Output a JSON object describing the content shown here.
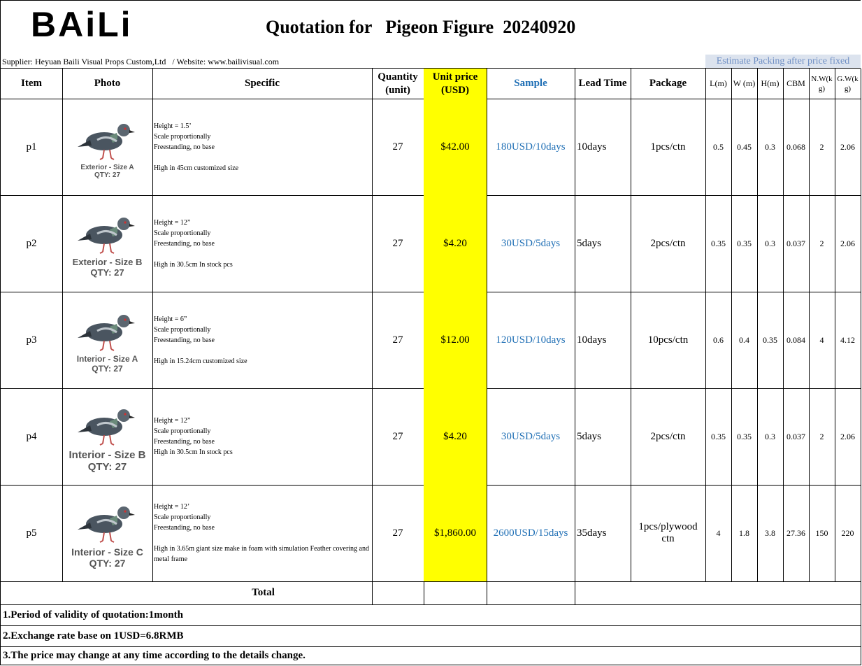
{
  "header": {
    "logo": "BAiLi",
    "title": "Quotation for   Pigeon Figure  20240920",
    "supplier": "Supplier: Heyuan Baili Visual Props Custom,Ltd   / Website: www.bailivisual.com",
    "packing_note": "Estimate Packing after price fixed"
  },
  "table": {
    "columns": [
      "Item",
      "Photo",
      "Specific",
      "Quantity (unit)",
      "Unit price (USD)",
      "Sample",
      "Lead Time",
      "Package",
      "L(m)",
      "W (m)",
      "H(m)",
      "CBM",
      "N.W(kg)",
      "G.W(kg)"
    ],
    "rows": [
      {
        "item": "p1",
        "caption": "Exterior - Size A",
        "caption_qty": "QTY: 27",
        "specific": [
          "Height = 1.5’",
          "Scale proportionally",
          "Freestanding, no base"
        ],
        "note": "High in 45cm  customized size",
        "quantity": 27,
        "unit_price": "$42.00",
        "sample": "180USD/10days",
        "lead_time": "10days",
        "package": "1pcs/ctn",
        "l": 0.5,
        "w": 0.45,
        "h": 0.3,
        "cbm": 0.068,
        "nw": 2,
        "gw": 2.06
      },
      {
        "item": "p2",
        "caption": "Exterior - Size B",
        "caption_qty": "QTY: 27",
        "specific": [
          "Height = 12”",
          "Scale proportionally",
          "Freestanding, no base"
        ],
        "note": "High in 30.5cm  In stock pcs",
        "quantity": 27,
        "unit_price": "$4.20",
        "sample": "30USD/5days",
        "lead_time": "5days",
        "package": "2pcs/ctn",
        "l": 0.35,
        "w": 0.35,
        "h": 0.3,
        "cbm": 0.037,
        "nw": 2,
        "gw": 2.06
      },
      {
        "item": "p3",
        "caption": "Interior - Size A",
        "caption_qty": "QTY: 27",
        "specific": [
          "Height = 6”",
          "Scale proportionally",
          "Freestanding, no base"
        ],
        "note": "High in 15.24cm customized size",
        "quantity": 27,
        "unit_price": "$12.00",
        "sample": "120USD/10days",
        "lead_time": "10days",
        "package": "10pcs/ctn",
        "l": 0.6,
        "w": 0.4,
        "h": 0.35,
        "cbm": 0.084,
        "nw": 4,
        "gw": 4.12
      },
      {
        "item": "p4",
        "caption": "Interior - Size B",
        "caption_qty": "QTY: 27",
        "specific": [
          "Height = 12”",
          "Scale proportionally",
          "Freestanding, no base"
        ],
        "note": "High in 30.5cm  In stock pcs",
        "quantity": 27,
        "unit_price": "$4.20",
        "sample": "30USD/5days",
        "lead_time": "5days",
        "package": "2pcs/ctn",
        "l": 0.35,
        "w": 0.35,
        "h": 0.3,
        "cbm": 0.037,
        "nw": 2,
        "gw": 2.06
      },
      {
        "item": "p5",
        "caption": "Interior - Size C",
        "caption_qty": "QTY: 27",
        "specific": [
          "Height = 12’",
          "Scale proportionally",
          "Freestanding, no base"
        ],
        "note": "High in 3.65m  giant size make in foam with simulation Feather covering and metal frame",
        "quantity": 27,
        "unit_price": "$1,860.00",
        "sample": "2600USD/15days",
        "lead_time": "35days",
        "package": "1pcs/plywood ctn",
        "l": 4,
        "w": 1.8,
        "h": 3.8,
        "cbm": 27.36,
        "nw": 150,
        "gw": 220
      }
    ],
    "total_label": "Total"
  },
  "notes": [
    "1.Period of validity of quotation:1month",
    "2.Exchange rate base on 1USD=6.8RMB",
    "3.The price may change at any time according to the details change."
  ]
}
